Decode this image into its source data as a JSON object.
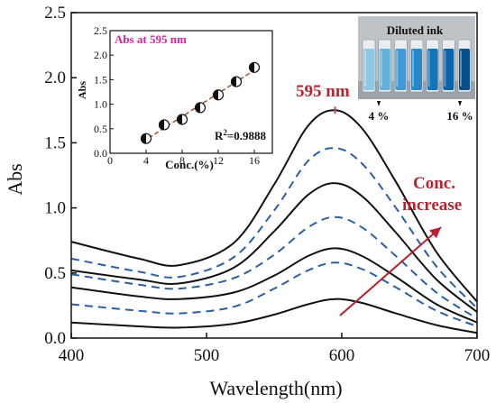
{
  "chart_data": {
    "type": "line",
    "xlabel": "Wavelength(nm)",
    "ylabel": "Abs",
    "xlim": [
      400,
      700
    ],
    "ylim": [
      0.0,
      2.5
    ],
    "xticks": [
      "400",
      "500",
      "600",
      "700"
    ],
    "yticks": [
      "0.0",
      "0.5",
      "1.0",
      "1.5",
      "2.0",
      "2.5"
    ],
    "peak_label": "595 nm",
    "annotation": {
      "line1": "Conc.",
      "line2": "increase"
    },
    "series": [
      {
        "style": "solid",
        "values": [
          [
            400,
            0.12
          ],
          [
            450,
            0.09
          ],
          [
            480,
            0.08
          ],
          [
            520,
            0.11
          ],
          [
            550,
            0.18
          ],
          [
            575,
            0.26
          ],
          [
            595,
            0.3
          ],
          [
            615,
            0.27
          ],
          [
            640,
            0.19
          ],
          [
            670,
            0.1
          ],
          [
            700,
            0.04
          ]
        ]
      },
      {
        "style": "dashed",
        "values": [
          [
            400,
            0.26
          ],
          [
            450,
            0.21
          ],
          [
            480,
            0.19
          ],
          [
            520,
            0.24
          ],
          [
            550,
            0.38
          ],
          [
            575,
            0.52
          ],
          [
            595,
            0.58
          ],
          [
            615,
            0.53
          ],
          [
            640,
            0.39
          ],
          [
            670,
            0.21
          ],
          [
            700,
            0.09
          ]
        ]
      },
      {
        "style": "solid",
        "values": [
          [
            400,
            0.39
          ],
          [
            450,
            0.32
          ],
          [
            480,
            0.3
          ],
          [
            520,
            0.35
          ],
          [
            550,
            0.48
          ],
          [
            575,
            0.63
          ],
          [
            595,
            0.69
          ],
          [
            615,
            0.63
          ],
          [
            640,
            0.47
          ],
          [
            670,
            0.26
          ],
          [
            700,
            0.12
          ]
        ]
      },
      {
        "style": "dashed",
        "values": [
          [
            400,
            0.49
          ],
          [
            450,
            0.41
          ],
          [
            480,
            0.38
          ],
          [
            520,
            0.46
          ],
          [
            550,
            0.64
          ],
          [
            575,
            0.85
          ],
          [
            595,
            0.93
          ],
          [
            615,
            0.85
          ],
          [
            640,
            0.63
          ],
          [
            670,
            0.35
          ],
          [
            700,
            0.15
          ]
        ]
      },
      {
        "style": "solid",
        "values": [
          [
            400,
            0.52
          ],
          [
            450,
            0.45
          ],
          [
            480,
            0.42
          ],
          [
            520,
            0.54
          ],
          [
            550,
            0.82
          ],
          [
            575,
            1.1
          ],
          [
            595,
            1.19
          ],
          [
            615,
            1.09
          ],
          [
            640,
            0.81
          ],
          [
            670,
            0.45
          ],
          [
            700,
            0.2
          ]
        ]
      },
      {
        "style": "dashed",
        "values": [
          [
            400,
            0.61
          ],
          [
            450,
            0.51
          ],
          [
            480,
            0.47
          ],
          [
            520,
            0.62
          ],
          [
            550,
            0.98
          ],
          [
            575,
            1.36
          ],
          [
            595,
            1.46
          ],
          [
            615,
            1.34
          ],
          [
            640,
            1.0
          ],
          [
            670,
            0.55
          ],
          [
            700,
            0.23
          ]
        ]
      },
      {
        "style": "solid",
        "values": [
          [
            400,
            0.74
          ],
          [
            450,
            0.61
          ],
          [
            480,
            0.56
          ],
          [
            520,
            0.73
          ],
          [
            550,
            1.18
          ],
          [
            575,
            1.63
          ],
          [
            595,
            1.75
          ],
          [
            615,
            1.61
          ],
          [
            640,
            1.2
          ],
          [
            670,
            0.66
          ],
          [
            700,
            0.28
          ]
        ]
      }
    ],
    "inset": {
      "title": "Abs at 595 nm",
      "xlabel": "Conc.(%)",
      "ylabel": "Abs",
      "xlim": [
        0,
        18
      ],
      "ylim": [
        0.0,
        2.5
      ],
      "xticks": [
        "0",
        "4",
        "8",
        "12",
        "16"
      ],
      "yticks": [
        "0.0",
        "0.5",
        "1.0",
        "1.5",
        "2.0",
        "2.5"
      ],
      "r2_prefix": "R",
      "r2_sup": "2",
      "r2_value": "=0.9888",
      "points": [
        [
          4,
          0.3
        ],
        [
          6,
          0.58
        ],
        [
          8,
          0.69
        ],
        [
          10,
          0.93
        ],
        [
          12,
          1.19
        ],
        [
          14,
          1.46
        ],
        [
          16,
          1.75
        ]
      ]
    },
    "photo": {
      "title": "Diluted ink",
      "left_label": "4 %",
      "right_label": "16 %",
      "vial_colors": [
        "#8ec8e6",
        "#62b0dd",
        "#3f9ad3",
        "#2586c8",
        "#1474bb",
        "#0b63a8",
        "#08508a"
      ]
    },
    "colors": {
      "solid": "#111111",
      "dashed": "#2a5fa6",
      "accent": "#b8232f",
      "inset_title": "#d6269a",
      "fit_line": "#a0532a"
    }
  }
}
